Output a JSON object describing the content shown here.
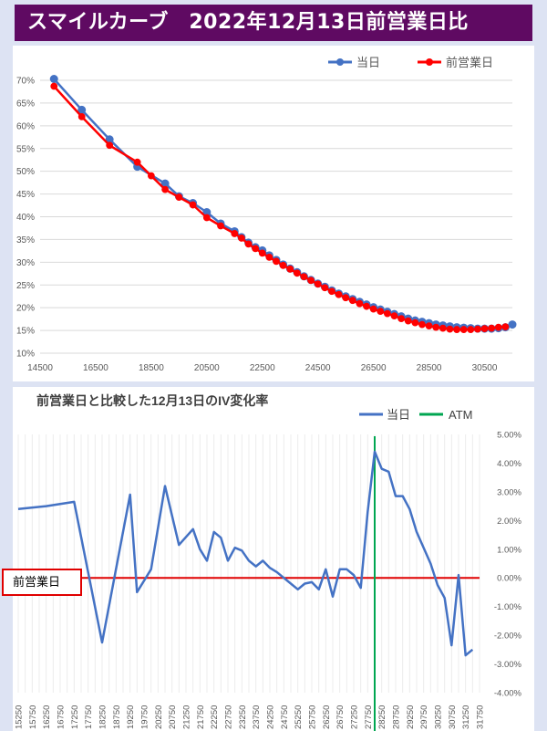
{
  "header": {
    "title": "スマイルカーブ　2022年12月13日前営業日比"
  },
  "annotation": {
    "prev_day_label": "前営業日"
  },
  "chart_data": [
    {
      "type": "line",
      "title": "",
      "legend_position": "top-right",
      "xlim": [
        14500,
        31500
      ],
      "ylim": [
        10,
        70
      ],
      "x_ticks": [
        14500,
        16500,
        18500,
        20500,
        22500,
        24500,
        26500,
        28500,
        30500
      ],
      "x_tick_labels": [
        "14500",
        "16500",
        "18500",
        "20500",
        "22500",
        "24500",
        "26500",
        "28500",
        "30500"
      ],
      "y_ticks": [
        10,
        15,
        20,
        25,
        30,
        35,
        40,
        45,
        50,
        55,
        60,
        65,
        70
      ],
      "y_tick_labels": [
        "10%",
        "15%",
        "20%",
        "25%",
        "30%",
        "35%",
        "40%",
        "45%",
        "50%",
        "55%",
        "60%",
        "65%",
        "70%"
      ],
      "grid": true,
      "series": [
        {
          "name": "当日",
          "color": "#4472c4",
          "marker": "circle",
          "points": [
            [
              15000,
              70.3
            ],
            [
              16000,
              63.5
            ],
            [
              17000,
              57
            ],
            [
              18000,
              51
            ],
            [
              19000,
              47.3
            ],
            [
              19500,
              44.5
            ],
            [
              20000,
              43
            ],
            [
              20500,
              41
            ],
            [
              21000,
              38.5
            ],
            [
              21500,
              36.8
            ],
            [
              21750,
              35.5
            ],
            [
              22000,
              34.3
            ],
            [
              22250,
              33.3
            ],
            [
              22500,
              32.6
            ],
            [
              22750,
              31.5
            ],
            [
              23000,
              30.5
            ],
            [
              23250,
              29.5
            ],
            [
              23500,
              28.6
            ],
            [
              23750,
              27.8
            ],
            [
              24000,
              26.9
            ],
            [
              24250,
              26.1
            ],
            [
              24500,
              25.3
            ],
            [
              24750,
              24.6
            ],
            [
              25000,
              23.8
            ],
            [
              25250,
              23.1
            ],
            [
              25500,
              22.5
            ],
            [
              25750,
              21.9
            ],
            [
              26000,
              21.3
            ],
            [
              26250,
              20.7
            ],
            [
              26500,
              20.1
            ],
            [
              26750,
              19.6
            ],
            [
              27000,
              19.1
            ],
            [
              27250,
              18.6
            ],
            [
              27500,
              18.1
            ],
            [
              27750,
              17.6
            ],
            [
              28000,
              17.2
            ],
            [
              28250,
              16.9
            ],
            [
              28500,
              16.6
            ],
            [
              28750,
              16.3
            ],
            [
              29000,
              16.1
            ],
            [
              29250,
              15.9
            ],
            [
              29500,
              15.7
            ],
            [
              29750,
              15.6
            ],
            [
              30000,
              15.5
            ],
            [
              30250,
              15.4
            ],
            [
              30500,
              15.4
            ],
            [
              30750,
              15.4
            ],
            [
              31000,
              15.5
            ],
            [
              31250,
              15.7
            ],
            [
              31500,
              16.3
            ]
          ]
        },
        {
          "name": "前営業日",
          "color": "#ff0000",
          "marker": "circle",
          "points": [
            [
              15000,
              68.7
            ],
            [
              16000,
              62
            ],
            [
              17000,
              55.7
            ],
            [
              18000,
              52
            ],
            [
              18500,
              49
            ],
            [
              19000,
              46
            ],
            [
              19500,
              44.3
            ],
            [
              20000,
              42.6
            ],
            [
              20500,
              39.8
            ],
            [
              21000,
              38
            ],
            [
              21500,
              36.3
            ],
            [
              21750,
              35.3
            ],
            [
              22000,
              34
            ],
            [
              22250,
              33
            ],
            [
              22500,
              32
            ],
            [
              22750,
              31.1
            ],
            [
              23000,
              30.2
            ],
            [
              23250,
              29.3
            ],
            [
              23500,
              28.5
            ],
            [
              23750,
              27.6
            ],
            [
              24000,
              26.8
            ],
            [
              24250,
              26
            ],
            [
              24500,
              25.2
            ],
            [
              24750,
              24.4
            ],
            [
              25000,
              23.6
            ],
            [
              25250,
              22.9
            ],
            [
              25500,
              22.2
            ],
            [
              25750,
              21.6
            ],
            [
              26000,
              20.9
            ],
            [
              26250,
              20.3
            ],
            [
              26500,
              19.7
            ],
            [
              26750,
              19.2
            ],
            [
              27000,
              18.7
            ],
            [
              27250,
              18.2
            ],
            [
              27500,
              17.6
            ],
            [
              27750,
              17.1
            ],
            [
              28000,
              16.7
            ],
            [
              28250,
              16.3
            ],
            [
              28500,
              16
            ],
            [
              28750,
              15.7
            ],
            [
              29000,
              15.5
            ],
            [
              29250,
              15.3
            ],
            [
              29500,
              15.2
            ],
            [
              29750,
              15.2
            ],
            [
              30000,
              15.2
            ],
            [
              30250,
              15.3
            ],
            [
              30500,
              15.4
            ],
            [
              30750,
              15.5
            ],
            [
              31000,
              15.7
            ],
            [
              31250,
              15.8
            ]
          ]
        }
      ]
    },
    {
      "type": "line",
      "title": "前営業日と比較した12月13日のIV変化率",
      "legend_position": "top-right",
      "xlim": [
        15250,
        31750
      ],
      "ylim": [
        -4,
        5
      ],
      "y_ticks": [
        -4,
        -3,
        -2,
        -1,
        0,
        1,
        2,
        3,
        4,
        5
      ],
      "y_tick_labels": [
        "-4.00%",
        "-3.00%",
        "-2.00%",
        "-1.00%",
        "0.00%",
        "1.00%",
        "2.00%",
        "3.00%",
        "4.00%",
        "5.00%"
      ],
      "y_axis_side": "right",
      "x_tick_labels": [
        "15250",
        "15750",
        "16250",
        "16750",
        "17250",
        "17750",
        "18250",
        "18750",
        "19250",
        "19750",
        "20250",
        "20750",
        "21250",
        "21750",
        "22250",
        "22750",
        "23250",
        "23750",
        "24250",
        "24750",
        "25250",
        "25750",
        "26250",
        "26750",
        "27250",
        "27750",
        "28250",
        "28750",
        "29250",
        "29750",
        "30250",
        "30750",
        "31250",
        "31750"
      ],
      "x_tick_orientation": "vertical",
      "grid": "vertical",
      "series": [
        {
          "name": "当日",
          "color": "#4472c4",
          "points": [
            [
              15250,
              2.4
            ],
            [
              16250,
              2.5
            ],
            [
              17250,
              2.65
            ],
            [
              18250,
              -2.25
            ],
            [
              19250,
              2.9
            ],
            [
              19500,
              -0.5
            ],
            [
              20000,
              0.3
            ],
            [
              20500,
              3.2
            ],
            [
              21000,
              1.15
            ],
            [
              21500,
              1.7
            ],
            [
              21750,
              1.0
            ],
            [
              22000,
              0.6
            ],
            [
              22250,
              1.6
            ],
            [
              22500,
              1.4
            ],
            [
              22750,
              0.6
            ],
            [
              23000,
              1.05
            ],
            [
              23250,
              0.95
            ],
            [
              23500,
              0.6
            ],
            [
              23750,
              0.4
            ],
            [
              24000,
              0.6
            ],
            [
              24250,
              0.35
            ],
            [
              24500,
              0.2
            ],
            [
              24750,
              0.0
            ],
            [
              25000,
              -0.2
            ],
            [
              25250,
              -0.4
            ],
            [
              25500,
              -0.2
            ],
            [
              25750,
              -0.15
            ],
            [
              26000,
              -0.4
            ],
            [
              26250,
              0.3
            ],
            [
              26500,
              -0.65
            ],
            [
              26750,
              0.3
            ],
            [
              27000,
              0.3
            ],
            [
              27250,
              0.1
            ],
            [
              27500,
              -0.35
            ],
            [
              27750,
              2.3
            ],
            [
              28000,
              4.4
            ],
            [
              28250,
              3.8
            ],
            [
              28500,
              3.7
            ],
            [
              28750,
              2.85
            ],
            [
              29000,
              2.85
            ],
            [
              29250,
              2.4
            ],
            [
              29500,
              1.6
            ],
            [
              30000,
              0.5
            ],
            [
              30250,
              -0.25
            ],
            [
              30500,
              -0.7
            ],
            [
              30750,
              -2.35
            ],
            [
              31000,
              0.1
            ],
            [
              31250,
              -2.7
            ],
            [
              31500,
              -2.5
            ]
          ]
        },
        {
          "name": "ATM",
          "color": "#00a651",
          "x": 28000
        }
      ],
      "reference_line": {
        "y": 0,
        "color": "#e00000"
      }
    }
  ]
}
